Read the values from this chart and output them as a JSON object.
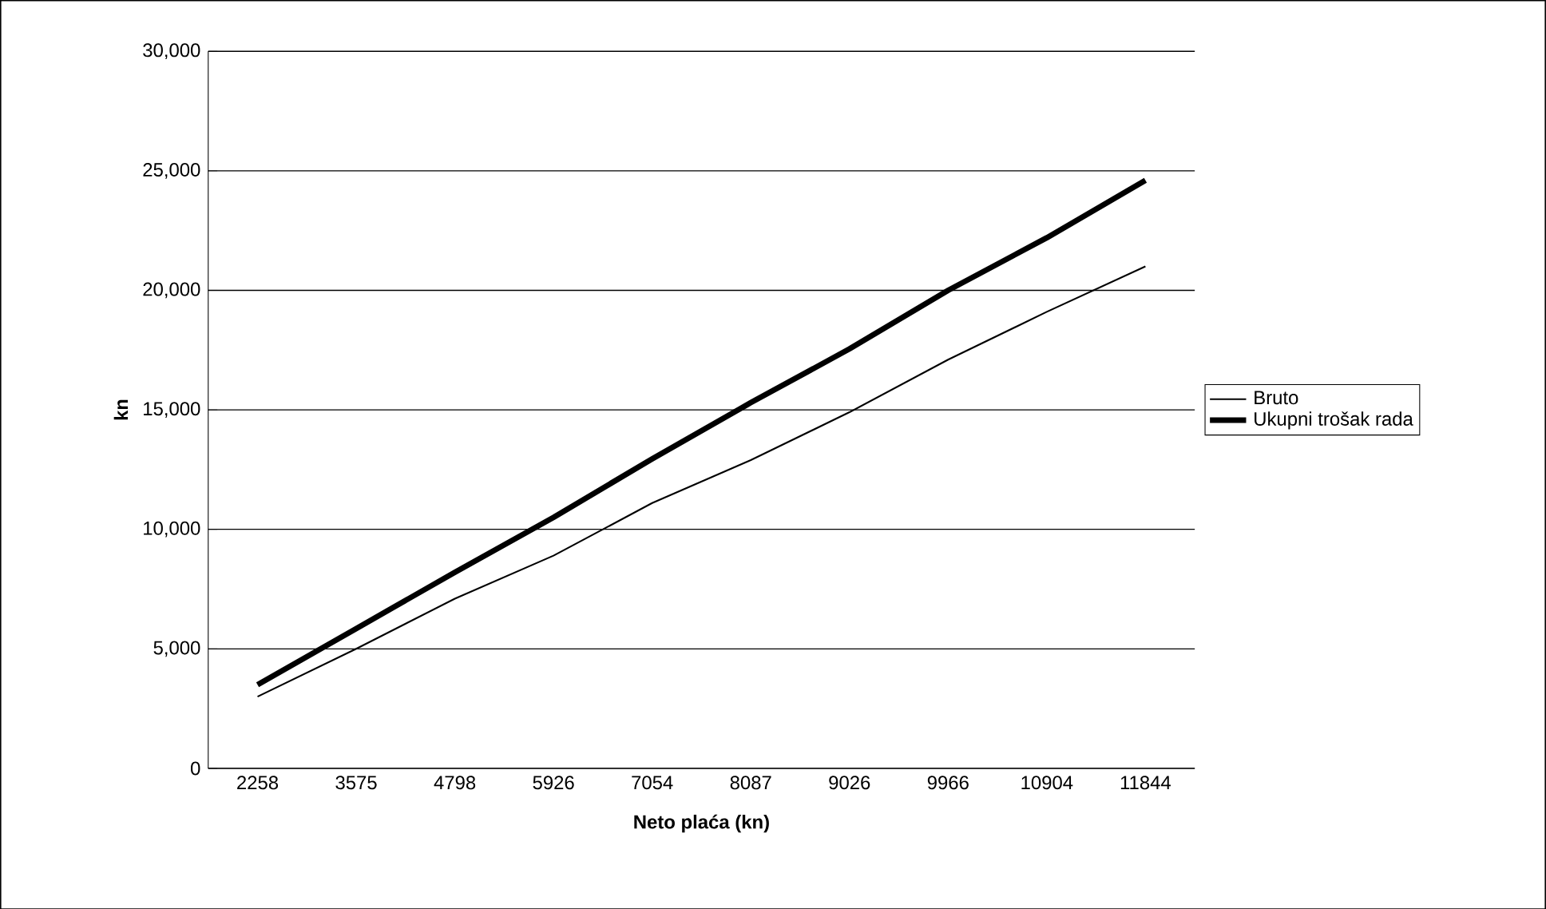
{
  "chart_data": {
    "type": "line",
    "xlabel": "Neto plaća (kn)",
    "ylabel": "kn",
    "categories": [
      "2258",
      "3575",
      "4798",
      "5926",
      "7054",
      "8087",
      "9026",
      "9966",
      "10904",
      "11844"
    ],
    "series": [
      {
        "name": "Bruto",
        "color": "#000000",
        "line_style": "solid",
        "values": [
          3000,
          5000,
          7100,
          8900,
          11100,
          12900,
          14900,
          17100,
          19100,
          21000
        ]
      },
      {
        "name": "Ukupni trošak rada",
        "color": "#000000",
        "line_style": "solid",
        "values": [
          3500,
          5850,
          8200,
          10500,
          12950,
          15300,
          17550,
          20000,
          22200,
          24600
        ]
      }
    ],
    "ylim": [
      0,
      30000
    ],
    "yticks": [
      0,
      {
        "value": 5000,
        "label": "5,000"
      },
      {
        "value": 10000,
        "label": "10,000"
      },
      {
        "value": 15000,
        "label": "15,000"
      },
      {
        "value": 20000,
        "label": "20,000"
      },
      {
        "value": 25000,
        "label": "25,000"
      },
      {
        "value": 30000,
        "label": "30,000"
      }
    ],
    "grid": "y",
    "legend": "right",
    "marker": "none"
  }
}
